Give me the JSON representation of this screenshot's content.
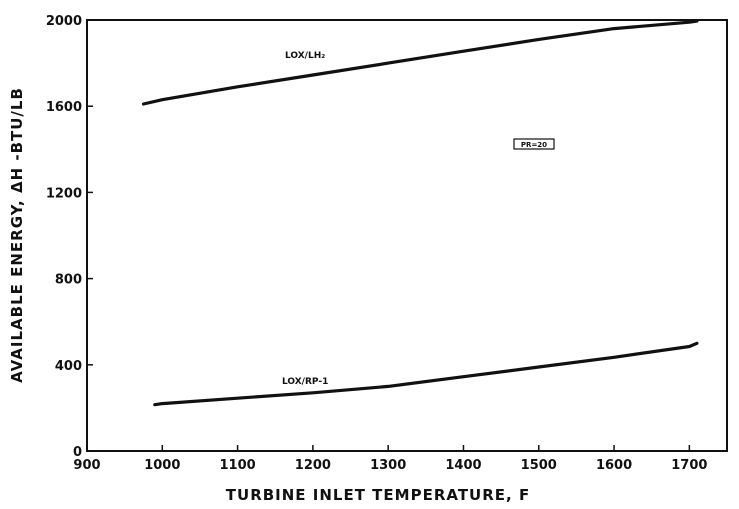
{
  "chart_data": {
    "type": "line",
    "title": "",
    "xlabel": "TURBINE INLET TEMPERATURE, F",
    "ylabel": "AVAILABLE ENERGY, ΔH  -BTU/LB",
    "xlim": [
      900,
      1750
    ],
    "ylim": [
      0,
      2000
    ],
    "x_ticks": [
      900,
      1000,
      1100,
      1200,
      1300,
      1400,
      1500,
      1600,
      1700
    ],
    "y_ticks": [
      0,
      400,
      800,
      1200,
      1600,
      2000
    ],
    "grid": false,
    "annotation": "PR=20",
    "series": [
      {
        "name": "LOX/LH₂",
        "x": [
          975,
          1000,
          1100,
          1200,
          1300,
          1400,
          1500,
          1600,
          1700,
          1710
        ],
        "y": [
          1610,
          1630,
          1690,
          1745,
          1800,
          1855,
          1910,
          1960,
          1990,
          1995
        ]
      },
      {
        "name": "LOX/RP-1",
        "x": [
          990,
          1000,
          1100,
          1200,
          1300,
          1400,
          1500,
          1600,
          1700,
          1710
        ],
        "y": [
          215,
          220,
          245,
          270,
          300,
          345,
          390,
          435,
          485,
          500
        ]
      }
    ]
  }
}
